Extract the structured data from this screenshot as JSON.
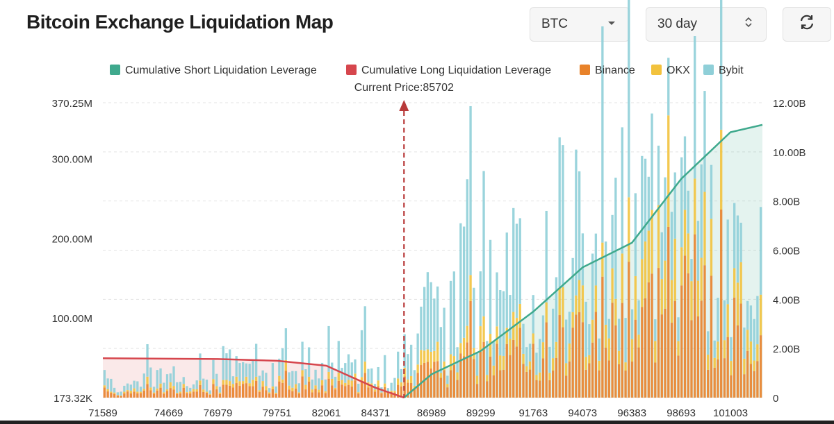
{
  "title": "Bitcoin Exchange Liquidation Map",
  "controls": {
    "coin": "BTC",
    "range": "30 day",
    "coin_icon": "chevron-down-icon",
    "range_icon": "updown-chevron-icon",
    "refresh_icon": "refresh-icon"
  },
  "colors": {
    "short": "#3fa98d",
    "long": "#d6464d",
    "binance": "#e8822a",
    "okx": "#f2c23d",
    "bybit": "#8fcfd8",
    "grid": "#e3e3e3",
    "axis_text": "#333333"
  },
  "chart_data": {
    "type": "bar",
    "legend": [
      "Cumulative Short Liquidation Leverage",
      "Cumulative Long Liquidation Leverage",
      "Binance",
      "OKX",
      "Bybit"
    ],
    "legend_position": "top",
    "current_price_label": "Current Price:85702",
    "current_price": 85702,
    "x_tick_labels": [
      "71589",
      "74669",
      "76979",
      "79751",
      "82061",
      "84371",
      "86989",
      "89299",
      "91763",
      "94073",
      "96383",
      "98693",
      "101003"
    ],
    "y_left_ticks": [
      "370.25M",
      "300.00M",
      "200.00M",
      "100.00M",
      "173.32K"
    ],
    "y_right_ticks": [
      "12.00B",
      "10.00B",
      "8.00B",
      "6.00B",
      "4.00B",
      "2.00B",
      "0"
    ],
    "y_left_range_M": [
      0.17332,
      370.25
    ],
    "y_right_range_B": [
      0,
      12
    ],
    "grid": true,
    "bars_sample": [
      {
        "x": 82061,
        "binance": 20,
        "okx": 8,
        "bybit": 35
      },
      {
        "x": 84371,
        "binance": 12,
        "okx": 4,
        "bybit": 22
      },
      {
        "x": 86989,
        "binance": 30,
        "okx": 12,
        "bybit": 55
      },
      {
        "x": 89299,
        "binance": 50,
        "okx": 20,
        "bybit": 85
      },
      {
        "x": 91763,
        "binance": 60,
        "okx": 22,
        "bybit": 80
      },
      {
        "x": 94073,
        "binance": 85,
        "okx": 35,
        "bybit": 110
      },
      {
        "x": 96383,
        "binance": 95,
        "okx": 40,
        "bybit": 105
      },
      {
        "x": 98693,
        "binance": 150,
        "okx": 70,
        "bybit": 75
      },
      {
        "x": 101003,
        "binance": 80,
        "okx": 40,
        "bybit": 80
      }
    ],
    "long_cumulative_B": [
      {
        "x": 71589,
        "y": 1.6
      },
      {
        "x": 76979,
        "y": 1.57
      },
      {
        "x": 79751,
        "y": 1.5
      },
      {
        "x": 82061,
        "y": 1.3
      },
      {
        "x": 84371,
        "y": 0.4
      },
      {
        "x": 85702,
        "y": 0
      }
    ],
    "short_cumulative_B": [
      {
        "x": 85702,
        "y": 0
      },
      {
        "x": 86989,
        "y": 0.95
      },
      {
        "x": 89299,
        "y": 1.9
      },
      {
        "x": 91763,
        "y": 3.5
      },
      {
        "x": 94073,
        "y": 5.3
      },
      {
        "x": 96383,
        "y": 6.3
      },
      {
        "x": 98693,
        "y": 8.9
      },
      {
        "x": 101003,
        "y": 10.8
      },
      {
        "x": 102500,
        "y": 11.1
      }
    ]
  }
}
